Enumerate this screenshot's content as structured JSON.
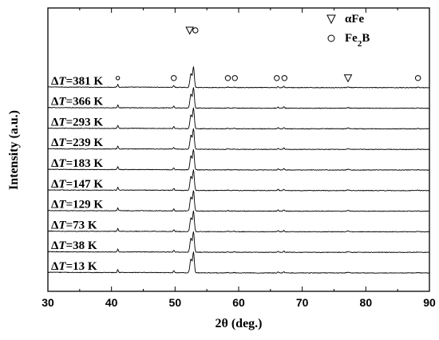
{
  "chart_data": {
    "type": "line",
    "xlabel": "2θ (deg.)",
    "ylabel": "Intensity (a.u.)",
    "xlim": [
      30,
      90
    ],
    "x_ticks": [
      "30",
      "40",
      "50",
      "60",
      "70",
      "80",
      "90"
    ],
    "y_ticks_shown": false,
    "grid": false,
    "legend": {
      "placement": "top-right",
      "entries": [
        {
          "symbol": "triangle-down",
          "label_prefix": "α",
          "label_main": "Fe",
          "label_sub": ""
        },
        {
          "symbol": "circle",
          "label_prefix": "",
          "label_main": "Fe",
          "label_sub": "2",
          "label_tail": "B"
        }
      ]
    },
    "label_parts": {
      "delta": "Δ",
      "var": "T",
      "eq": "=",
      "unit": " K"
    },
    "series": [
      {
        "dT": "381",
        "offset": 9
      },
      {
        "dT": "366",
        "offset": 8
      },
      {
        "dT": "293",
        "offset": 7
      },
      {
        "dT": "239",
        "offset": 6
      },
      {
        "dT": "183",
        "offset": 5
      },
      {
        "dT": "147",
        "offset": 4
      },
      {
        "dT": "129",
        "offset": 3
      },
      {
        "dT": "73",
        "offset": 2
      },
      {
        "dT": "38",
        "offset": 1
      },
      {
        "dT": "13",
        "offset": 0
      }
    ],
    "peaks": [
      {
        "x": 41.0,
        "h": 0.5,
        "w": 0.12
      },
      {
        "x": 49.8,
        "h": 0.35,
        "w": 0.12
      },
      {
        "x": 52.5,
        "h": 2.5,
        "w": 0.22
      },
      {
        "x": 52.9,
        "h": 3.6,
        "w": 0.18
      },
      {
        "x": 58.3,
        "h": 0.1,
        "w": 0.15
      },
      {
        "x": 59.3,
        "h": 0.08,
        "w": 0.15
      },
      {
        "x": 66.2,
        "h": 0.2,
        "w": 0.13
      },
      {
        "x": 67.1,
        "h": 0.25,
        "w": 0.13
      },
      {
        "x": 77.2,
        "h": 0.13,
        "w": 0.25
      },
      {
        "x": 88.2,
        "h": 0.07,
        "w": 0.18
      }
    ],
    "peak_markers": [
      {
        "x": 41.0,
        "symbol": "circle-small"
      },
      {
        "x": 49.8,
        "symbol": "circle"
      },
      {
        "x": 52.3,
        "symbol": "triangle-down"
      },
      {
        "x": 53.2,
        "symbol": "circle"
      },
      {
        "x": 58.3,
        "symbol": "circle"
      },
      {
        "x": 59.4,
        "symbol": "circle"
      },
      {
        "x": 66.0,
        "symbol": "circle"
      },
      {
        "x": 67.2,
        "symbol": "circle"
      },
      {
        "x": 77.2,
        "symbol": "triangle-down"
      },
      {
        "x": 88.2,
        "symbol": "circle"
      }
    ]
  }
}
